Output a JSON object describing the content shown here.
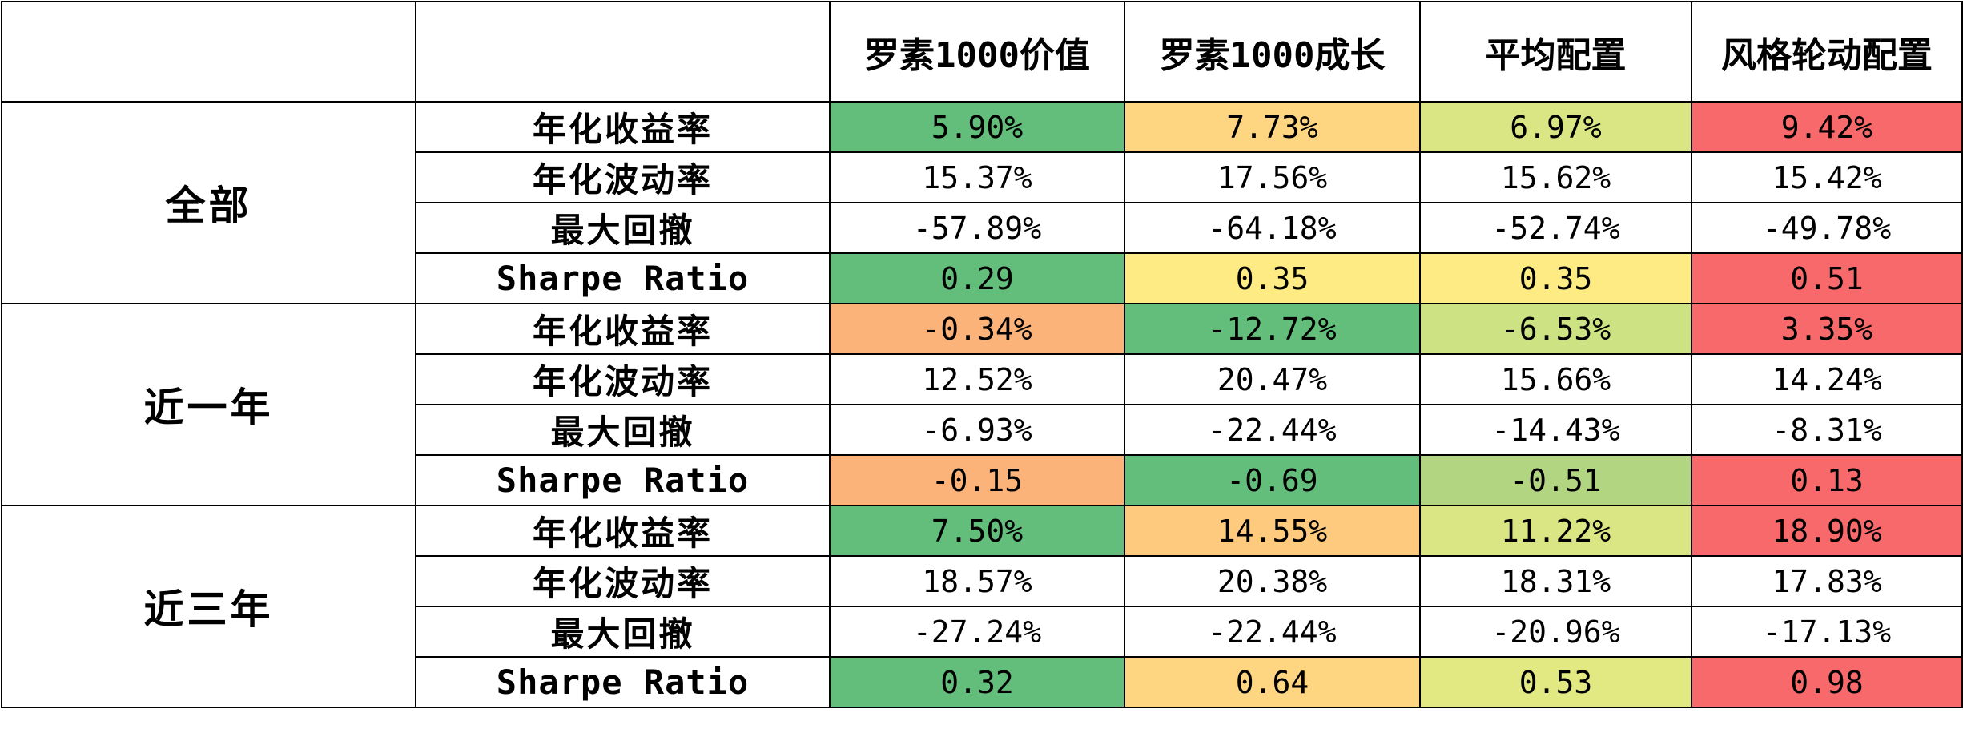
{
  "table": {
    "corner_label": "",
    "metric_header": "",
    "columns": [
      "罗素1000价值",
      "罗素1000成长",
      "平均配置",
      "风格轮动配置"
    ],
    "groups": [
      {
        "name": "全部",
        "rows": [
          {
            "metric": "年化收益率",
            "values": [
              "5.90%",
              "7.73%",
              "6.97%",
              "9.42%"
            ],
            "colors": [
              "#63BE7B",
              "#FED580",
              "#D9E683",
              "#F8696B"
            ]
          },
          {
            "metric": "年化波动率",
            "values": [
              "15.37%",
              "17.56%",
              "15.62%",
              "15.42%"
            ],
            "colors": [
              "#FFFFFF",
              "#FFFFFF",
              "#FFFFFF",
              "#FFFFFF"
            ]
          },
          {
            "metric": "最大回撤",
            "values": [
              "-57.89%",
              "-64.18%",
              "-52.74%",
              "-49.78%"
            ],
            "colors": [
              "#FFFFFF",
              "#FFFFFF",
              "#FFFFFF",
              "#FFFFFF"
            ]
          },
          {
            "metric": "Sharpe Ratio",
            "values": [
              "0.29",
              "0.35",
              "0.35",
              "0.51"
            ],
            "colors": [
              "#63BE7B",
              "#FEEB84",
              "#FEEB84",
              "#F8696B"
            ]
          }
        ]
      },
      {
        "name": "近一年",
        "rows": [
          {
            "metric": "年化收益率",
            "values": [
              "-0.34%",
              "-12.72%",
              "-6.53%",
              "3.35%"
            ],
            "colors": [
              "#FCB37A",
              "#63BE7B",
              "#CDE383",
              "#F8696B"
            ]
          },
          {
            "metric": "年化波动率",
            "values": [
              "12.52%",
              "20.47%",
              "15.66%",
              "14.24%"
            ],
            "colors": [
              "#FFFFFF",
              "#FFFFFF",
              "#FFFFFF",
              "#FFFFFF"
            ]
          },
          {
            "metric": "最大回撤",
            "values": [
              "-6.93%",
              "-22.44%",
              "-14.43%",
              "-8.31%"
            ],
            "colors": [
              "#FFFFFF",
              "#FFFFFF",
              "#FFFFFF",
              "#FFFFFF"
            ]
          },
          {
            "metric": "Sharpe Ratio",
            "values": [
              "-0.15",
              "-0.69",
              "-0.51",
              "0.13"
            ],
            "colors": [
              "#FCB37A",
              "#63BE7B",
              "#B1D580",
              "#F8696B"
            ]
          }
        ]
      },
      {
        "name": "近三年",
        "rows": [
          {
            "metric": "年化收益率",
            "values": [
              "7.50%",
              "14.55%",
              "11.22%",
              "18.90%"
            ],
            "colors": [
              "#63BE7B",
              "#FECA7E",
              "#D9E683",
              "#F8696B"
            ]
          },
          {
            "metric": "年化波动率",
            "values": [
              "18.57%",
              "20.38%",
              "18.31%",
              "17.83%"
            ],
            "colors": [
              "#FFFFFF",
              "#FFFFFF",
              "#FFFFFF",
              "#FFFFFF"
            ]
          },
          {
            "metric": "最大回撤",
            "values": [
              "-27.24%",
              "-22.44%",
              "-20.96%",
              "-17.13%"
            ],
            "colors": [
              "#FFFFFF",
              "#FFFFFF",
              "#FFFFFF",
              "#FFFFFF"
            ]
          },
          {
            "metric": "Sharpe Ratio",
            "values": [
              "0.32",
              "0.64",
              "0.53",
              "0.98"
            ],
            "colors": [
              "#63BE7B",
              "#FED580",
              "#E2E983",
              "#F8696B"
            ]
          }
        ]
      }
    ]
  },
  "chart_data": {
    "type": "table",
    "title": "",
    "columns": [
      "罗素1000价值",
      "罗素1000成长",
      "平均配置",
      "风格轮动配置"
    ],
    "row_groups": [
      "全部",
      "近一年",
      "近三年"
    ],
    "metrics": [
      "年化收益率",
      "年化波动率",
      "最大回撤",
      "Sharpe Ratio"
    ]
  }
}
